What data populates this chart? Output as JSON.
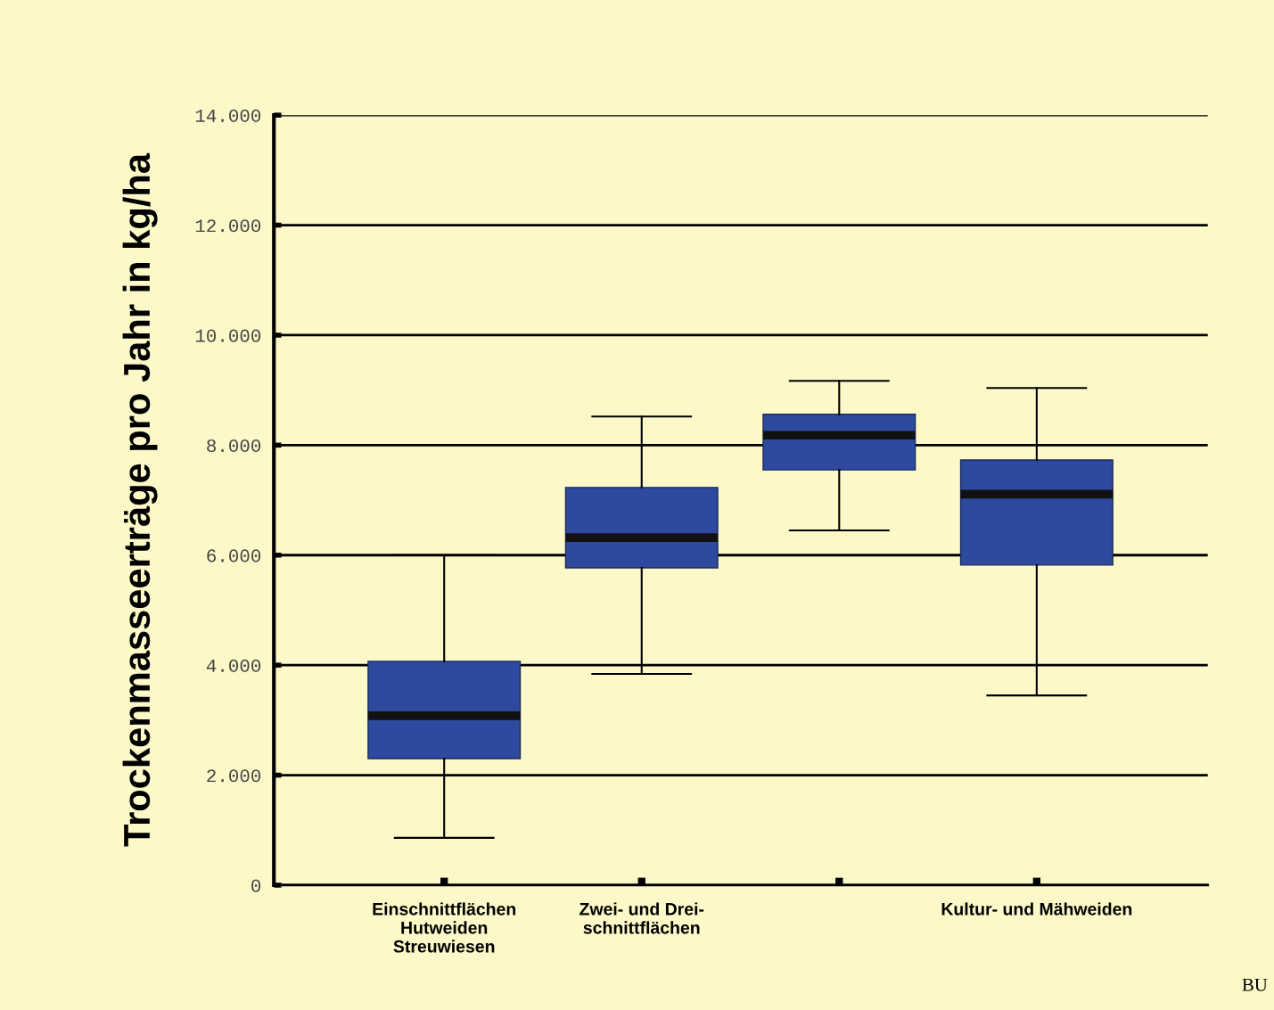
{
  "chart_data": {
    "type": "box",
    "ylabel": "Trockenmasseerträge pro Jahr in kg/ha",
    "categories": [
      "Einschnittflächen\nHutweiden\nStreuwiesen",
      "Zwei- und Drei-\nschnittflächen",
      null,
      "Kultur- und Mähweiden"
    ],
    "color": "#2e4a9e",
    "boxes": [
      {
        "low": 860,
        "q1": 2300,
        "median": 3080,
        "q3": 4070,
        "high": 6000
      },
      {
        "low": 3840,
        "q1": 5770,
        "median": 6320,
        "q3": 7230,
        "high": 8520
      },
      {
        "low": 6450,
        "q1": 7550,
        "median": 8180,
        "q3": 8560,
        "high": 9170
      },
      {
        "low": 3450,
        "q1": 5820,
        "median": 7110,
        "q3": 7730,
        "high": 9040
      }
    ],
    "ylim": [
      0,
      14000
    ],
    "yticks": [
      0,
      {
        "value": 2000,
        "label": "2.000"
      },
      {
        "value": 4000,
        "label": "4.000"
      },
      {
        "value": 6000,
        "label": "6.000"
      },
      {
        "value": 8000,
        "label": "8.000"
      },
      {
        "value": 10000,
        "label": "10.000"
      },
      {
        "value": 12000,
        "label": "12.000"
      },
      {
        "value": 14000,
        "label": "14.000"
      }
    ],
    "grid": "y",
    "annotations": [
      "BU"
    ]
  }
}
